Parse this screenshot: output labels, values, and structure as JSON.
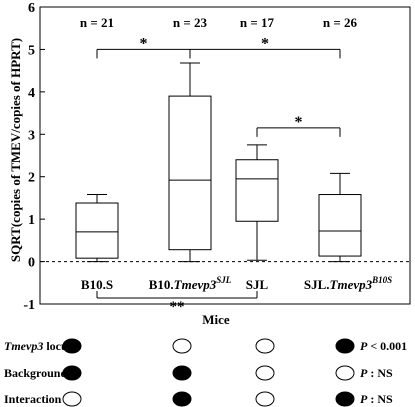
{
  "chart_data": {
    "type": "box",
    "ylabel": "SQRT(copies of TMEV/copies of HPRT)",
    "xlabel": "Mice",
    "ylim": [
      -1,
      6
    ],
    "yticks": [
      "-1",
      "0",
      "1",
      "2",
      "3",
      "4",
      "5",
      "6"
    ],
    "reference_line_y": 0,
    "groups": [
      {
        "label_main": "B10.S",
        "label_sup": "",
        "n_label": "n = 21",
        "whisker_low": 0.0,
        "q1": 0.08,
        "median": 0.7,
        "q3": 1.38,
        "whisker_high": 1.58
      },
      {
        "label_main": "B10.Tmevp3",
        "label_sup": "SJL",
        "n_label": "n = 23",
        "whisker_low": 0.0,
        "q1": 0.28,
        "median": 1.92,
        "q3": 3.9,
        "whisker_high": 4.68
      },
      {
        "label_main": "SJL",
        "label_sup": "",
        "n_label": "n = 17",
        "whisker_low": 0.03,
        "q1": 0.95,
        "median": 1.95,
        "q3": 2.4,
        "whisker_high": 2.75
      },
      {
        "label_main": "SJL.Tmevp3",
        "label_sup": "B10S",
        "n_label": "n = 26",
        "whisker_low": 0.0,
        "q1": 0.13,
        "median": 0.72,
        "q3": 1.58,
        "whisker_high": 2.08
      }
    ],
    "significance": [
      {
        "from": 0,
        "to": 1,
        "label": "*",
        "y": 5.0,
        "position": "top"
      },
      {
        "from": 1,
        "to": 3,
        "label": "*",
        "y": 5.0,
        "position": "top"
      },
      {
        "from": 2,
        "to": 3,
        "label": "*",
        "y": 3.15,
        "position": "top"
      },
      {
        "from": 0,
        "to": 2,
        "label": "**",
        "y": -1.25,
        "position": "bottom"
      }
    ]
  },
  "factor_table": {
    "rows": [
      {
        "label_italic": "Tmevp3",
        "label_rest": " locus",
        "dots": [
          "filled",
          "open",
          "open",
          "filled"
        ],
        "p_label": "P",
        "p_value": " < 0.001"
      },
      {
        "label_italic": "",
        "label_rest": "Background",
        "dots": [
          "filled",
          "filled",
          "open",
          "open"
        ],
        "p_label": "P",
        "p_value": " : NS"
      },
      {
        "label_italic": "",
        "label_rest": "Interaction",
        "dots": [
          "open",
          "filled",
          "open",
          "filled"
        ],
        "p_label": "P",
        "p_value": " : NS"
      }
    ]
  }
}
